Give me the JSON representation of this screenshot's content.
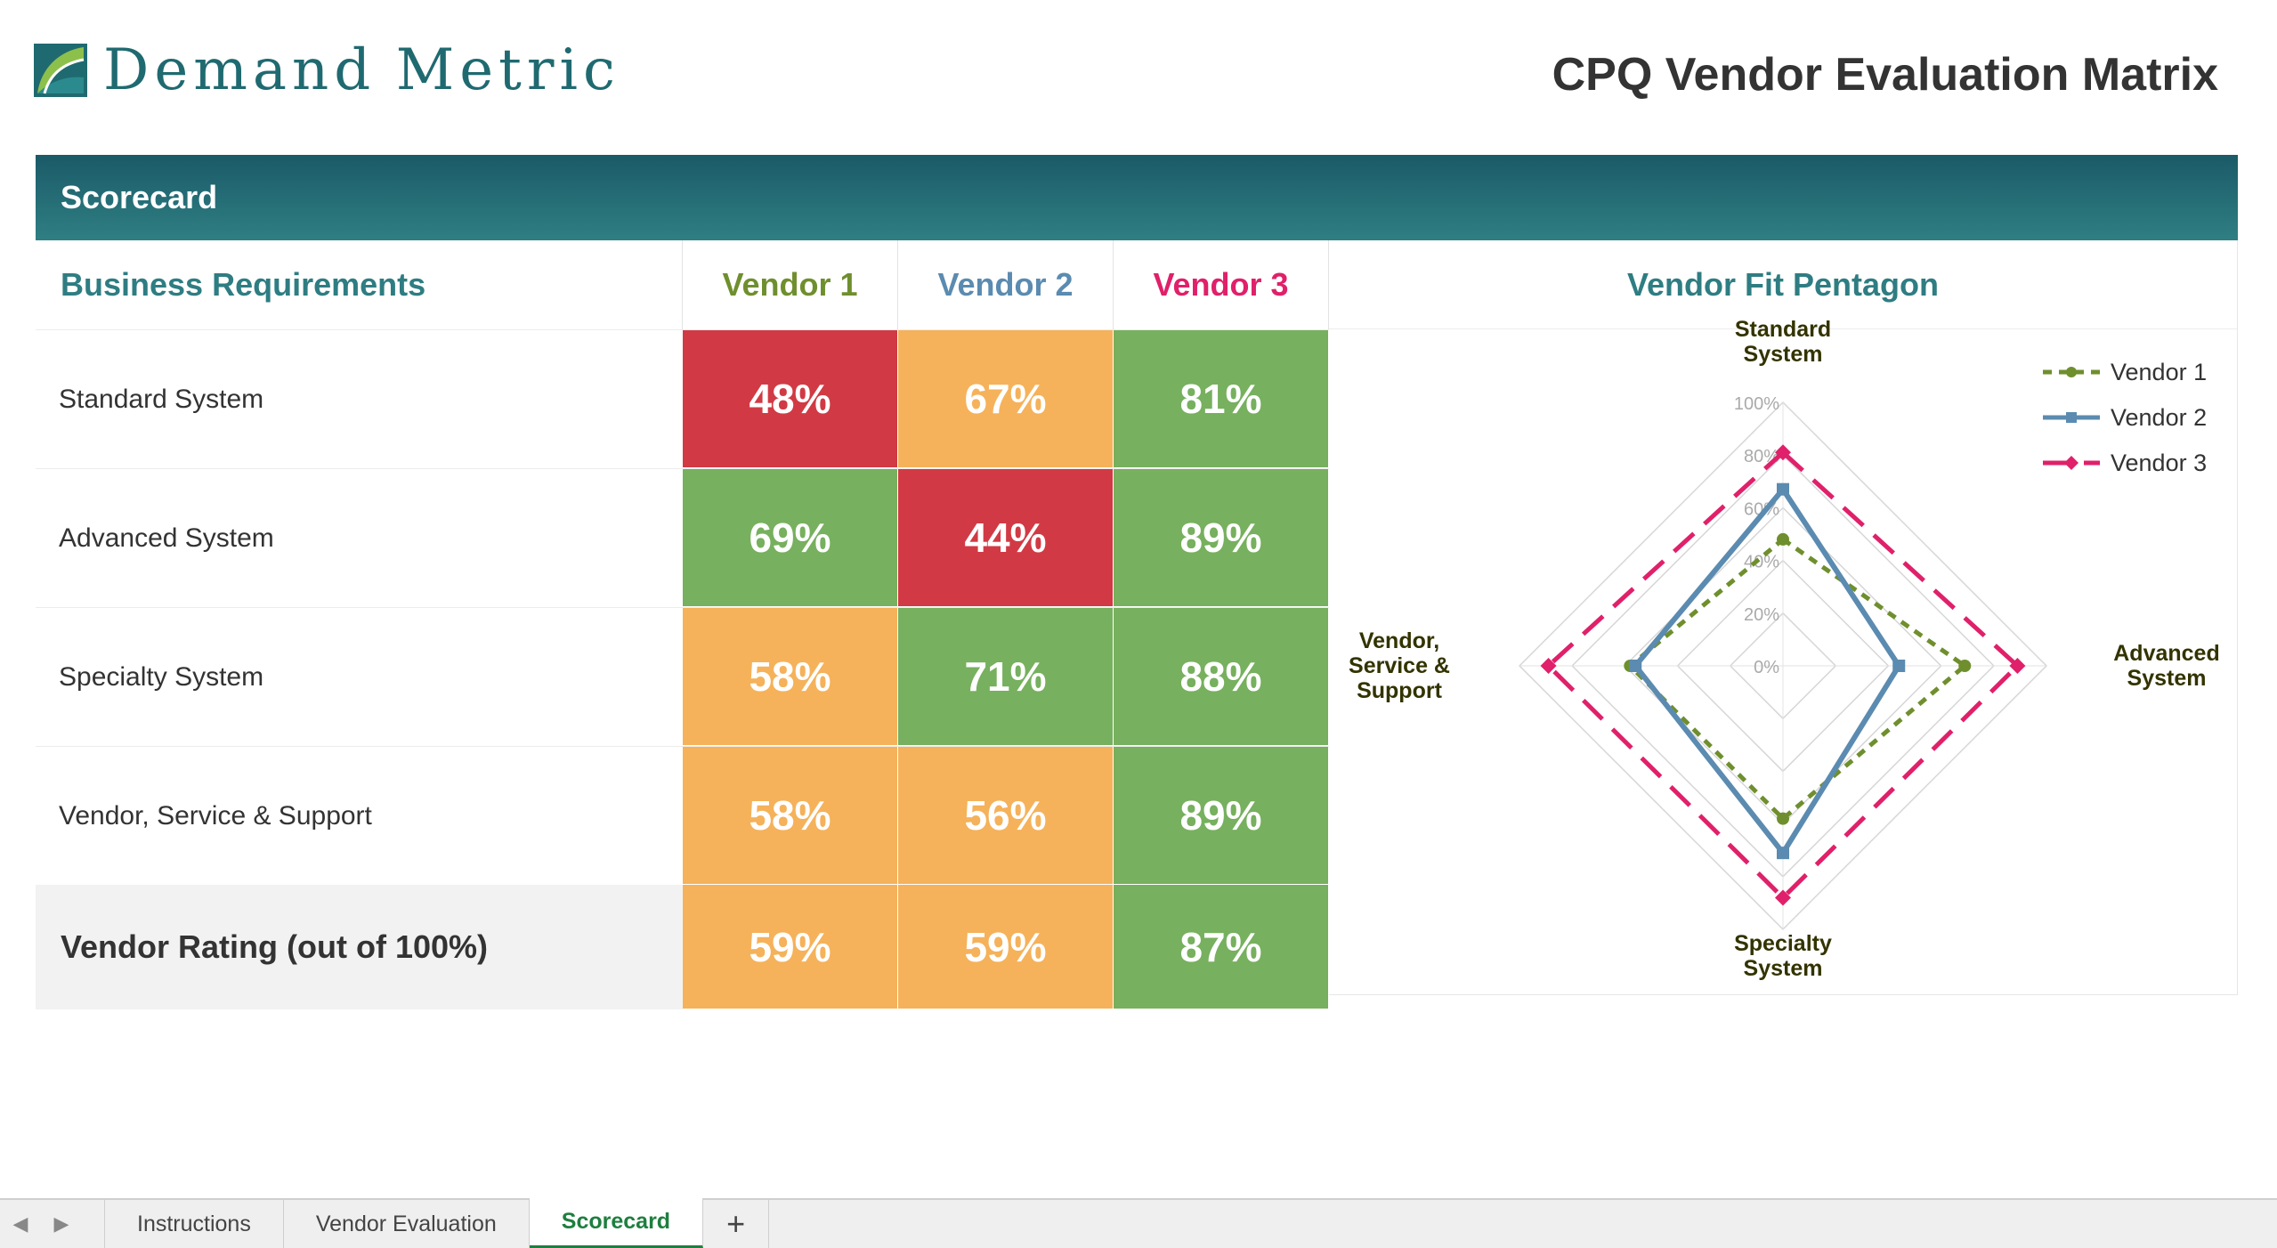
{
  "brand": {
    "name_first": "Demand",
    "name_second": "Metric"
  },
  "document_title": "CPQ Vendor Evaluation Matrix",
  "banner": {
    "label": "Scorecard"
  },
  "table": {
    "header": {
      "requirements": "Business Requirements",
      "vendor1": "Vendor 1",
      "vendor2": "Vendor 2",
      "vendor3": "Vendor 3"
    },
    "vendor_colors": [
      "#6f8f2e",
      "#5b8bb0",
      "#e0206a"
    ],
    "rows": [
      {
        "label": "Standard System",
        "v1": "48%",
        "v2": "67%",
        "v3": "81%",
        "c1": "#d13a44",
        "c2": "#f5b25a",
        "c3": "#77b05e"
      },
      {
        "label": "Advanced System",
        "v1": "69%",
        "v2": "44%",
        "v3": "89%",
        "c1": "#77b05e",
        "c2": "#d13a44",
        "c3": "#77b05e"
      },
      {
        "label": "Specialty System",
        "v1": "58%",
        "v2": "71%",
        "v3": "88%",
        "c1": "#f5b25a",
        "c2": "#77b05e",
        "c3": "#77b05e"
      },
      {
        "label": "Vendor, Service & Support",
        "v1": "58%",
        "v2": "56%",
        "v3": "89%",
        "c1": "#f5b25a",
        "c2": "#f5b25a",
        "c3": "#77b05e"
      }
    ],
    "total": {
      "label": "Vendor Rating (out of 100%)",
      "v1": "59%",
      "v2": "59%",
      "v3": "87%",
      "c1": "#f5b25a",
      "c2": "#f5b25a",
      "c3": "#77b05e"
    }
  },
  "chart_data": {
    "type": "radar",
    "title": "Vendor Fit Pentagon",
    "axes": [
      "Standard System",
      "Advanced System",
      "Specialty System",
      "Vendor, Service & Support"
    ],
    "axis_labels": [
      [
        "Standard",
        "System"
      ],
      [
        "Advanced",
        "System"
      ],
      [
        "Specialty",
        "System"
      ],
      [
        "Vendor,",
        "Service &",
        "Support"
      ]
    ],
    "ticks": [
      "0%",
      "20%",
      "40%",
      "60%",
      "80%",
      "100%"
    ],
    "range": [
      0,
      100
    ],
    "legend_position": "top-right",
    "series": [
      {
        "name": "Vendor 1",
        "values": [
          48,
          69,
          58,
          58
        ],
        "color": "#6f8f2e",
        "style": "dotted-dash",
        "marker": "circle"
      },
      {
        "name": "Vendor 2",
        "values": [
          67,
          44,
          71,
          56
        ],
        "color": "#5b8bb0",
        "style": "solid",
        "marker": "square"
      },
      {
        "name": "Vendor 3",
        "values": [
          81,
          89,
          88,
          89
        ],
        "color": "#e0206a",
        "style": "dash",
        "marker": "diamond"
      }
    ]
  },
  "sheet_tabs": {
    "tabs": [
      "Instructions",
      "Vendor Evaluation",
      "Scorecard"
    ],
    "active": "Scorecard",
    "add_label": "+"
  }
}
